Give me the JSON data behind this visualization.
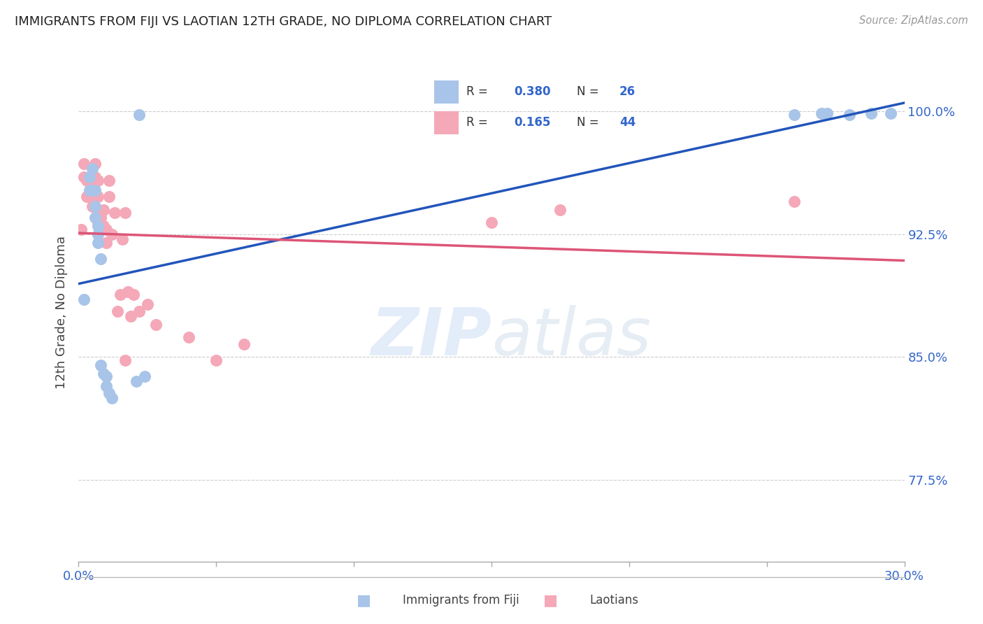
{
  "title": "IMMIGRANTS FROM FIJI VS LAOTIAN 12TH GRADE, NO DIPLOMA CORRELATION CHART",
  "source": "Source: ZipAtlas.com",
  "ylabel": "12th Grade, No Diploma",
  "ytick_positions": [
    0.775,
    0.85,
    0.925,
    1.0
  ],
  "ytick_labels": [
    "77.5%",
    "85.0%",
    "92.5%",
    "100.0%"
  ],
  "xmin": 0.0,
  "xmax": 0.3,
  "ymin": 0.725,
  "ymax": 1.03,
  "fiji_color": "#a8c4e8",
  "laotian_color": "#f4a8b8",
  "fiji_line_color": "#2255bb",
  "laotian_line_color": "#dd5577",
  "legend_label_fiji": "Immigrants from Fiji",
  "legend_label_laotian": "Laotians",
  "fiji_x": [
    0.002,
    0.004,
    0.004,
    0.005,
    0.006,
    0.006,
    0.006,
    0.007,
    0.007,
    0.007,
    0.008,
    0.008,
    0.009,
    0.01,
    0.01,
    0.011,
    0.012,
    0.021,
    0.022,
    0.024,
    0.26,
    0.27,
    0.272,
    0.28,
    0.288,
    0.295
  ],
  "fiji_y": [
    0.885,
    0.96,
    0.952,
    0.965,
    0.952,
    0.942,
    0.935,
    0.93,
    0.925,
    0.92,
    0.91,
    0.845,
    0.84,
    0.838,
    0.832,
    0.828,
    0.825,
    0.835,
    0.998,
    0.838,
    0.998,
    0.999,
    0.999,
    0.998,
    0.999,
    0.999
  ],
  "laotian_x": [
    0.001,
    0.002,
    0.002,
    0.003,
    0.003,
    0.004,
    0.004,
    0.005,
    0.005,
    0.005,
    0.006,
    0.006,
    0.006,
    0.007,
    0.007,
    0.007,
    0.007,
    0.008,
    0.008,
    0.009,
    0.009,
    0.01,
    0.01,
    0.011,
    0.011,
    0.012,
    0.013,
    0.014,
    0.015,
    0.016,
    0.017,
    0.017,
    0.018,
    0.019,
    0.02,
    0.022,
    0.025,
    0.028,
    0.04,
    0.05,
    0.06,
    0.15,
    0.175,
    0.26
  ],
  "laotian_y": [
    0.928,
    0.968,
    0.96,
    0.958,
    0.948,
    0.958,
    0.948,
    0.96,
    0.952,
    0.942,
    0.968,
    0.96,
    0.95,
    0.958,
    0.948,
    0.94,
    0.932,
    0.935,
    0.928,
    0.94,
    0.93,
    0.928,
    0.92,
    0.958,
    0.948,
    0.925,
    0.938,
    0.878,
    0.888,
    0.922,
    0.848,
    0.938,
    0.89,
    0.875,
    0.888,
    0.878,
    0.882,
    0.87,
    0.862,
    0.848,
    0.858,
    0.932,
    0.94,
    0.945
  ],
  "watermark_zip": "ZIP",
  "watermark_atlas": "atlas",
  "background_color": "#ffffff",
  "grid_color": "#cccccc",
  "text_color": "#3366cc",
  "title_color": "#222222",
  "source_color": "#999999",
  "label_color": "#444444"
}
